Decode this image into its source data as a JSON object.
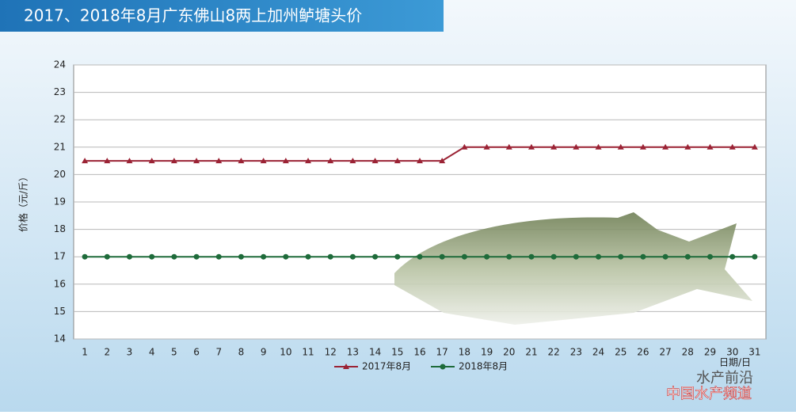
{
  "chart_data": {
    "type": "line",
    "title": "2017、2018年8月广东佛山8两上加州鲈塘头价",
    "y_label": "价格（元/斤）",
    "x_label": "日期/日",
    "categories": [
      "1",
      "2",
      "3",
      "4",
      "5",
      "6",
      "7",
      "8",
      "9",
      "10",
      "11",
      "12",
      "13",
      "14",
      "15",
      "16",
      "17",
      "18",
      "19",
      "20",
      "21",
      "22",
      "23",
      "24",
      "25",
      "26",
      "27",
      "28",
      "29",
      "30",
      "31"
    ],
    "series": [
      {
        "name": "2017年8月",
        "color": "#9b2335",
        "marker": "triangle",
        "values": [
          20.5,
          20.5,
          20.5,
          20.5,
          20.5,
          20.5,
          20.5,
          20.5,
          20.5,
          20.5,
          20.5,
          20.5,
          20.5,
          20.5,
          20.5,
          20.5,
          20.5,
          21,
          21,
          21,
          21,
          21,
          21,
          21,
          21,
          21,
          21,
          21,
          21,
          21,
          21
        ]
      },
      {
        "name": "2018年8月",
        "color": "#1e6b3a",
        "marker": "circle",
        "values": [
          17,
          17,
          17,
          17,
          17,
          17,
          17,
          17,
          17,
          17,
          17,
          17,
          17,
          17,
          17,
          17,
          17,
          17,
          17,
          17,
          17,
          17,
          17,
          17,
          17,
          17,
          17,
          17,
          17,
          17,
          17
        ]
      }
    ],
    "ylim": [
      14,
      24
    ],
    "yticks": [
      14,
      15,
      16,
      17,
      18,
      19,
      20,
      21,
      22,
      23,
      24
    ],
    "grid": true,
    "watermark": [
      "水产前沿",
      "中国水产频道"
    ]
  }
}
